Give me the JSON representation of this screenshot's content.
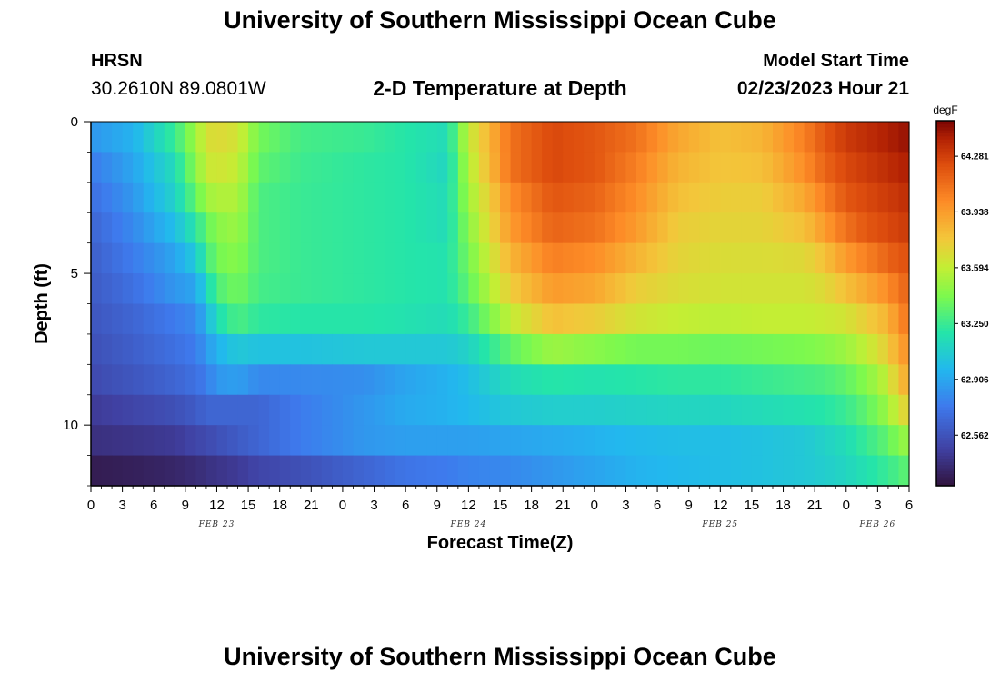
{
  "header": {
    "main_title": "University of Southern Mississippi Ocean Cube",
    "station": "HRSN",
    "coords": "30.2610N  89.0801W",
    "subtitle": "2-D Temperature at Depth",
    "start_label": "Model Start Time",
    "start_time": "02/23/2023 Hour 21"
  },
  "footer": {
    "title": "University of Southern Mississippi Ocean Cube"
  },
  "chart_data": {
    "type": "heatmap",
    "title": "2-D Temperature at Depth",
    "xlabel": "Forecast Time(Z)",
    "ylabel": "Depth (ft)",
    "x_hours_range": [
      0,
      78
    ],
    "y_range_ft": [
      0,
      12
    ],
    "x_tick_labels": [
      "0",
      "3",
      "6",
      "9",
      "12",
      "15",
      "18",
      "21",
      "0",
      "3",
      "6",
      "9",
      "12",
      "15",
      "18",
      "21",
      "0",
      "3",
      "6",
      "9",
      "12",
      "15",
      "18",
      "21",
      "0",
      "3",
      "6"
    ],
    "y_tick_labels": [
      "0",
      "5",
      "10"
    ],
    "y_tick_values": [
      0,
      5,
      10
    ],
    "date_labels": [
      {
        "text": "FEB 23",
        "hour": 12
      },
      {
        "text": "FEB 24",
        "hour": 36
      },
      {
        "text": "FEB 25",
        "hour": 60
      },
      {
        "text": "FEB 26",
        "hour": 75
      }
    ],
    "colorbar": {
      "unit": "degF",
      "min": 62.25,
      "max": 64.5,
      "tick_labels": [
        "62.562",
        "62.906",
        "63.250",
        "63.594",
        "63.938",
        "64.281"
      ],
      "tick_values": [
        62.562,
        62.906,
        63.25,
        63.594,
        63.938,
        64.281
      ]
    },
    "depth_layers_ft": [
      0.5,
      1.5,
      2.5,
      3.5,
      4.5,
      5.5,
      6.5,
      7.5,
      8.5,
      9.5,
      10.5,
      11.5
    ],
    "time_hours": [
      0,
      4,
      8,
      10,
      11,
      12,
      14,
      16,
      20,
      26,
      30,
      34,
      36,
      40,
      44,
      48,
      52,
      56,
      60,
      64,
      68,
      70,
      72,
      74,
      76,
      77,
      78
    ],
    "temperature_degF": [
      [
        62.85,
        62.95,
        63.25,
        63.5,
        63.65,
        63.7,
        63.65,
        63.4,
        63.28,
        63.25,
        63.2,
        63.15,
        63.6,
        64.1,
        64.25,
        64.2,
        64.1,
        63.9,
        63.8,
        63.85,
        64.05,
        64.2,
        64.3,
        64.35,
        64.4,
        64.42,
        64.45
      ],
      [
        62.75,
        62.9,
        63.15,
        63.45,
        63.6,
        63.65,
        63.6,
        63.35,
        63.26,
        63.22,
        63.2,
        63.12,
        63.55,
        64.1,
        64.25,
        64.2,
        64.05,
        63.85,
        63.78,
        63.8,
        64.0,
        64.15,
        64.25,
        64.3,
        64.35,
        64.38,
        64.4
      ],
      [
        62.7,
        62.85,
        63.1,
        63.35,
        63.5,
        63.55,
        63.55,
        63.3,
        63.25,
        63.22,
        63.2,
        63.15,
        63.5,
        64.0,
        64.2,
        64.15,
        64.0,
        63.8,
        63.75,
        63.75,
        63.9,
        64.05,
        64.2,
        64.25,
        64.3,
        64.32,
        64.35
      ],
      [
        62.65,
        62.8,
        63.0,
        63.2,
        63.35,
        63.45,
        63.5,
        63.3,
        63.25,
        63.22,
        63.2,
        63.15,
        63.45,
        63.95,
        64.15,
        64.1,
        63.95,
        63.75,
        63.72,
        63.72,
        63.8,
        63.95,
        64.1,
        64.2,
        64.25,
        64.28,
        64.3
      ],
      [
        62.62,
        62.75,
        62.9,
        63.05,
        63.25,
        63.4,
        63.45,
        63.3,
        63.25,
        63.22,
        63.2,
        63.18,
        63.4,
        63.85,
        64.05,
        64.0,
        63.85,
        63.72,
        63.68,
        63.68,
        63.7,
        63.8,
        63.95,
        64.05,
        64.15,
        64.2,
        64.22
      ],
      [
        62.6,
        62.7,
        62.85,
        62.9,
        63.1,
        63.3,
        63.4,
        63.28,
        63.25,
        63.22,
        63.2,
        63.18,
        63.35,
        63.75,
        63.95,
        63.9,
        63.75,
        63.68,
        63.65,
        63.65,
        63.65,
        63.7,
        63.8,
        63.9,
        64.0,
        64.1,
        64.15
      ],
      [
        62.58,
        62.65,
        62.75,
        62.8,
        62.95,
        63.15,
        63.3,
        63.22,
        63.2,
        63.2,
        63.18,
        63.15,
        63.25,
        63.6,
        63.8,
        63.75,
        63.65,
        63.6,
        63.58,
        63.6,
        63.6,
        63.62,
        63.65,
        63.75,
        63.85,
        64.0,
        64.1
      ],
      [
        62.55,
        62.62,
        62.7,
        62.75,
        62.85,
        62.95,
        63.05,
        63.02,
        63.02,
        63.05,
        63.05,
        63.05,
        63.1,
        63.35,
        63.5,
        63.45,
        63.4,
        63.4,
        63.38,
        63.4,
        63.42,
        63.45,
        63.5,
        63.6,
        63.75,
        63.9,
        64.0
      ],
      [
        62.52,
        62.58,
        62.65,
        62.7,
        62.75,
        62.85,
        62.88,
        62.8,
        62.8,
        62.82,
        62.9,
        62.95,
        63.0,
        63.15,
        63.2,
        63.18,
        63.2,
        63.22,
        63.22,
        63.25,
        63.28,
        63.3,
        63.35,
        63.45,
        63.6,
        63.8,
        63.9
      ],
      [
        62.45,
        62.5,
        62.55,
        62.6,
        62.65,
        62.65,
        62.65,
        62.65,
        62.75,
        62.85,
        62.92,
        62.95,
        62.98,
        63.05,
        63.08,
        63.08,
        63.1,
        63.12,
        63.12,
        63.15,
        63.18,
        63.2,
        63.25,
        63.35,
        63.5,
        63.65,
        63.75
      ],
      [
        62.4,
        62.42,
        62.45,
        62.5,
        62.52,
        62.55,
        62.6,
        62.65,
        62.75,
        62.85,
        62.88,
        62.88,
        62.88,
        62.9,
        62.92,
        62.95,
        62.98,
        63.0,
        63.0,
        63.02,
        63.05,
        63.1,
        63.15,
        63.25,
        63.35,
        63.45,
        63.5
      ],
      [
        62.3,
        62.32,
        62.35,
        62.38,
        62.4,
        62.42,
        62.45,
        62.5,
        62.55,
        62.65,
        62.72,
        62.75,
        62.78,
        62.8,
        62.85,
        62.9,
        62.95,
        62.98,
        63.0,
        63.02,
        63.05,
        63.08,
        63.12,
        63.18,
        63.25,
        63.3,
        63.35
      ]
    ]
  }
}
